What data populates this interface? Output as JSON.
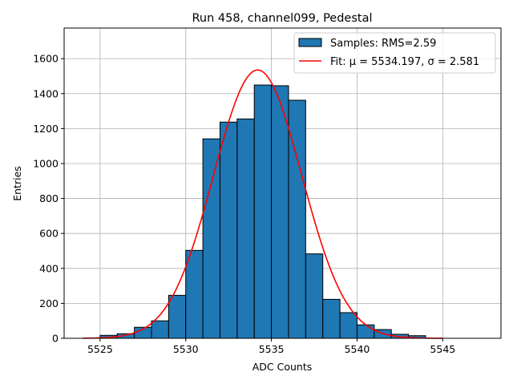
{
  "chart_data": {
    "type": "bar",
    "title": "Run 458, channel099, Pedestal",
    "xlabel": "ADC Counts",
    "ylabel": "Entries",
    "xlim": [
      5522.9,
      5548.4
    ],
    "ylim": [
      0,
      1775
    ],
    "xticks": [
      5525,
      5530,
      5535,
      5540,
      5545
    ],
    "yticks": [
      0,
      200,
      400,
      600,
      800,
      1000,
      1200,
      1400,
      1600
    ],
    "grid": true,
    "legend_placement": "top-right",
    "bin_edges": [
      5525,
      5526,
      5527,
      5528,
      5529,
      5530,
      5531,
      5532,
      5533,
      5534,
      5535,
      5536,
      5537,
      5538,
      5539,
      5540,
      5541,
      5542,
      5543,
      5544
    ],
    "series": [
      {
        "name": "Samples: RMS=2.59",
        "type": "histogram",
        "color": "#1f77b4",
        "values": [
          17,
          26,
          63,
          100,
          246,
          503,
          1141,
          1237,
          1255,
          1449,
          1445,
          1362,
          483,
          223,
          147,
          77,
          50,
          23,
          15
        ]
      },
      {
        "name": "Fit: μ = 5534.197, σ = 2.581",
        "type": "line",
        "color": "#ff0000",
        "mu": 5534.197,
        "sigma": 2.581,
        "amplitude": 1535,
        "x_range": [
          5524,
          5545
        ]
      }
    ]
  }
}
